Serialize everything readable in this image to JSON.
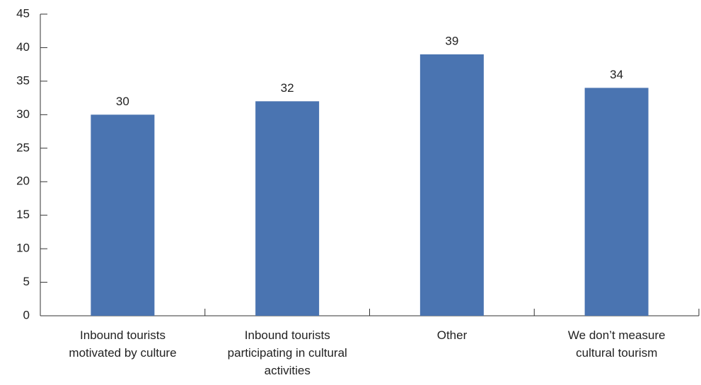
{
  "chart_data": {
    "type": "bar",
    "categories": [
      "Inbound tourists\nmotivated by culture",
      "Inbound tourists\nparticipating in cultural\nactivities",
      "Other",
      "We don’t measure\ncultural tourism"
    ],
    "values": [
      30,
      32,
      39,
      34
    ],
    "color": "#4a74b1",
    "ylim": [
      0,
      45
    ],
    "yticks": [
      0,
      5,
      10,
      15,
      20,
      25,
      30,
      35,
      40,
      45
    ],
    "grid": false
  }
}
